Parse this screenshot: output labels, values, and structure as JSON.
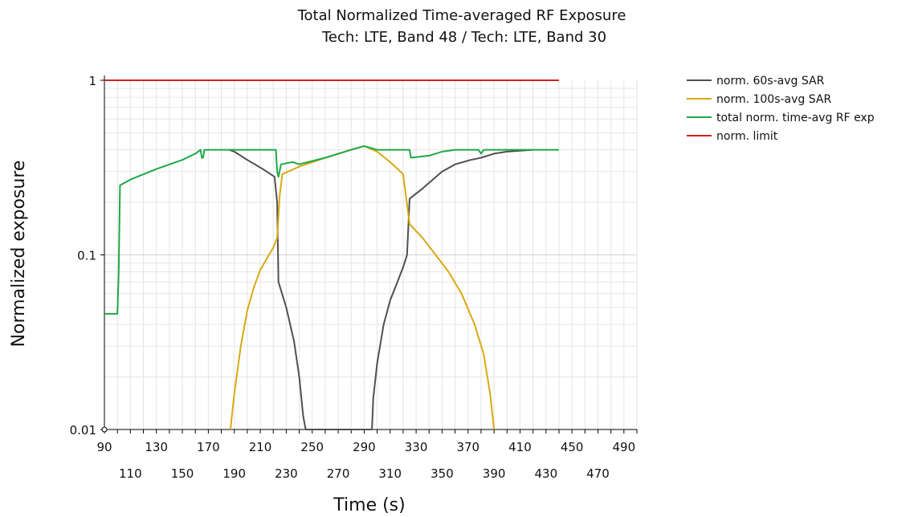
{
  "chart_data": {
    "type": "line",
    "title": "Total Normalized Time-averaged RF Exposure",
    "subtitle": "Tech: LTE, Band 48 / Tech: LTE, Band 30",
    "xlabel": "Time (s)",
    "ylabel": "Normalized exposure",
    "xlim": [
      90,
      500
    ],
    "ylim": [
      0.01,
      1
    ],
    "yscale": "log",
    "grid": true,
    "legend_position": "top-right-outside",
    "x_ticks_top_row": [
      "90",
      "130",
      "170",
      "210",
      "250",
      "290",
      "330",
      "370",
      "410",
      "450",
      "490"
    ],
    "x_ticks_bottom_row": [
      "110",
      "150",
      "190",
      "230",
      "270",
      "310",
      "350",
      "390",
      "430",
      "470"
    ],
    "y_ticks": [
      "0.01",
      "0.1",
      "1"
    ],
    "series": [
      {
        "name": "norm. 60s-avg SAR",
        "color": "#505050",
        "points": [
          [
            186,
            0.4
          ],
          [
            190,
            0.39
          ],
          [
            200,
            0.35
          ],
          [
            212,
            0.31
          ],
          [
            221,
            0.28
          ],
          [
            223,
            0.2
          ],
          [
            224,
            0.07
          ],
          [
            230,
            0.05
          ],
          [
            236,
            0.032
          ],
          [
            240,
            0.02
          ],
          [
            243,
            0.012
          ],
          [
            245,
            0.01
          ],
          [
            296,
            0.01
          ],
          [
            297,
            0.015
          ],
          [
            300,
            0.024
          ],
          [
            305,
            0.04
          ],
          [
            310,
            0.055
          ],
          [
            315,
            0.068
          ],
          [
            320,
            0.085
          ],
          [
            323,
            0.1
          ],
          [
            325,
            0.21
          ],
          [
            335,
            0.24
          ],
          [
            350,
            0.3
          ],
          [
            360,
            0.33
          ],
          [
            372,
            0.35
          ],
          [
            380,
            0.36
          ],
          [
            390,
            0.38
          ],
          [
            400,
            0.39
          ],
          [
            420,
            0.4
          ]
        ]
      },
      {
        "name": "norm. 100s-avg SAR",
        "color": "#d9a914",
        "points": [
          [
            187,
            0.01
          ],
          [
            190,
            0.016
          ],
          [
            195,
            0.03
          ],
          [
            200,
            0.048
          ],
          [
            205,
            0.065
          ],
          [
            210,
            0.082
          ],
          [
            215,
            0.095
          ],
          [
            220,
            0.11
          ],
          [
            223,
            0.125
          ],
          [
            225,
            0.22
          ],
          [
            227,
            0.29
          ],
          [
            240,
            0.32
          ],
          [
            260,
            0.36
          ],
          [
            280,
            0.4
          ],
          [
            290,
            0.42
          ],
          [
            300,
            0.39
          ],
          [
            310,
            0.34
          ],
          [
            320,
            0.29
          ],
          [
            325,
            0.15
          ],
          [
            335,
            0.125
          ],
          [
            345,
            0.1
          ],
          [
            355,
            0.08
          ],
          [
            365,
            0.06
          ],
          [
            375,
            0.04
          ],
          [
            382,
            0.027
          ],
          [
            387,
            0.016
          ],
          [
            390,
            0.01
          ]
        ]
      },
      {
        "name": "total norm. time-avg RF exp",
        "color": "#1fa845",
        "points": [
          [
            90,
            0.046
          ],
          [
            100,
            0.046
          ],
          [
            101,
            0.08
          ],
          [
            102,
            0.25
          ],
          [
            110,
            0.27
          ],
          [
            130,
            0.31
          ],
          [
            150,
            0.35
          ],
          [
            160,
            0.38
          ],
          [
            164,
            0.4
          ],
          [
            165,
            0.36
          ],
          [
            166,
            0.36
          ],
          [
            167,
            0.4
          ],
          [
            210,
            0.4
          ],
          [
            222,
            0.4
          ],
          [
            223,
            0.3
          ],
          [
            224,
            0.28
          ],
          [
            226,
            0.33
          ],
          [
            235,
            0.34
          ],
          [
            240,
            0.33
          ],
          [
            260,
            0.36
          ],
          [
            280,
            0.4
          ],
          [
            290,
            0.42
          ],
          [
            300,
            0.4
          ],
          [
            325,
            0.4
          ],
          [
            326,
            0.36
          ],
          [
            340,
            0.37
          ],
          [
            350,
            0.39
          ],
          [
            360,
            0.4
          ],
          [
            378,
            0.4
          ],
          [
            380,
            0.38
          ],
          [
            382,
            0.4
          ],
          [
            400,
            0.4
          ],
          [
            420,
            0.4
          ],
          [
            440,
            0.4
          ]
        ]
      },
      {
        "name": "norm. limit",
        "color": "#d42020",
        "points": [
          [
            90,
            1.0
          ],
          [
            440,
            1.0
          ]
        ]
      }
    ]
  }
}
